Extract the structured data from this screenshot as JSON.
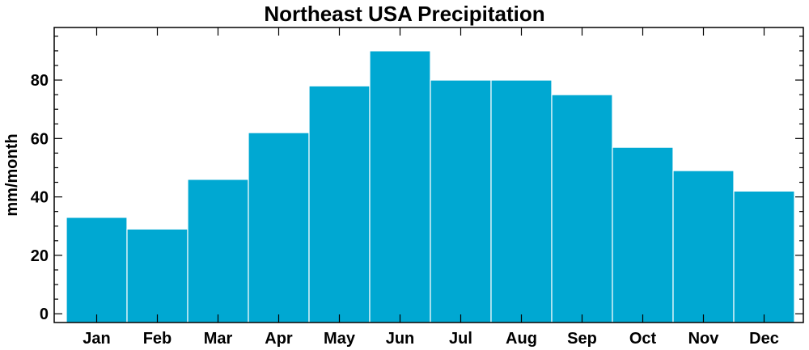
{
  "chart_data": {
    "type": "bar",
    "title": "Northeast USA Precipitation",
    "xlabel": "",
    "ylabel": "mm/month",
    "categories": [
      "Jan",
      "Feb",
      "Mar",
      "Apr",
      "May",
      "Jun",
      "Jul",
      "Aug",
      "Sep",
      "Oct",
      "Nov",
      "Dec"
    ],
    "values": [
      33,
      29,
      46,
      62,
      78,
      90,
      80,
      80,
      75,
      57,
      49,
      42
    ],
    "ylim": [
      -3,
      98
    ],
    "yticks": [
      0,
      20,
      40,
      60,
      80
    ],
    "yticks_minor_step": 5,
    "bar_color": "#00a8d2",
    "bar_edge_color": "#ffffff",
    "grid": false,
    "legend": "none"
  }
}
